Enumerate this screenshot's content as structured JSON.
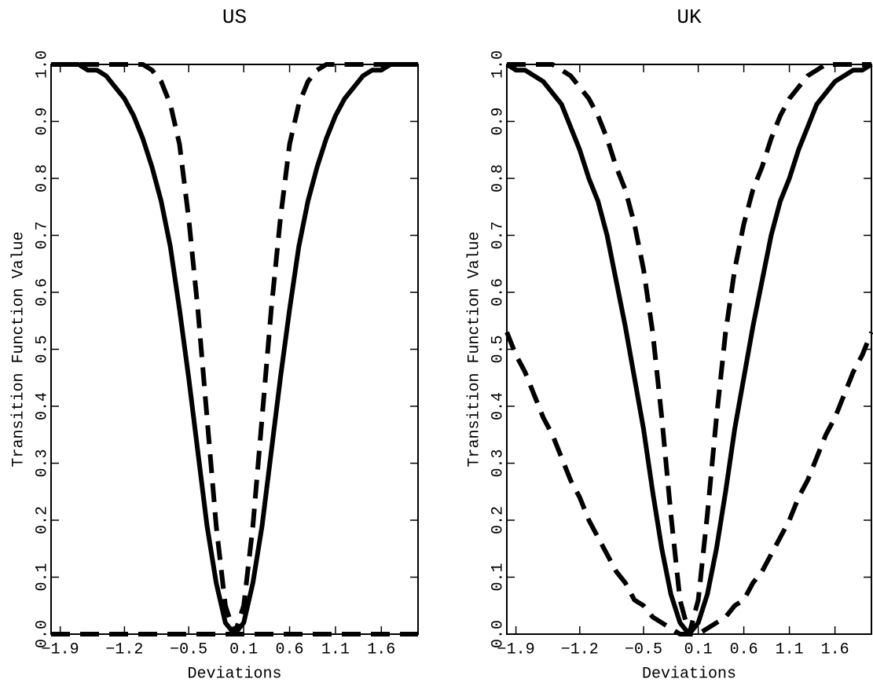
{
  "chart_data": [
    {
      "type": "line",
      "title": "US",
      "x_label": "Deviations",
      "y_label": "Transition Function Value",
      "x": [
        -2.0,
        -1.9,
        -1.8,
        -1.7,
        -1.6,
        -1.5,
        -1.4,
        -1.3,
        -1.2,
        -1.1,
        -1.0,
        -0.9,
        -0.8,
        -0.7,
        -0.6,
        -0.5,
        -0.4,
        -0.3,
        -0.2,
        -0.1,
        0,
        0.1,
        0.2,
        0.3,
        0.4,
        0.5,
        0.6,
        0.7,
        0.8,
        0.9,
        1.0,
        1.1,
        1.2,
        1.3,
        1.4,
        1.5,
        1.6,
        1.7,
        1.8,
        1.9,
        2.0
      ],
      "xlim": [
        -2,
        2
      ],
      "ylim": [
        0,
        1
      ],
      "xticks": [
        {
          "value": -1.9,
          "label": "−1.9"
        },
        {
          "value": -1.2,
          "label": "−1.2"
        },
        {
          "value": -0.5,
          "label": "−0.5"
        },
        0.1,
        0.6,
        1.1,
        1.6
      ],
      "yticks": [
        {
          "value": 0,
          "label": "0.0"
        },
        0.1,
        0.2,
        0.3,
        0.4,
        0.5,
        0.6,
        0.7,
        0.8,
        0.9,
        {
          "value": 1,
          "label": "1.0"
        }
      ],
      "series": [
        {
          "color": "#000000",
          "dashed": false,
          "values": [
            1,
            1,
            1,
            1,
            0.99,
            0.99,
            0.98,
            0.96,
            0.94,
            0.91,
            0.87,
            0.82,
            0.76,
            0.68,
            0.57,
            0.45,
            0.32,
            0.19,
            0.09,
            0.02,
            0,
            0.02,
            0.09,
            0.19,
            0.32,
            0.45,
            0.57,
            0.68,
            0.76,
            0.82,
            0.87,
            0.91,
            0.94,
            0.96,
            0.98,
            0.99,
            0.99,
            1,
            1,
            1,
            1
          ]
        },
        {
          "color": "#000000",
          "dashed": true,
          "values": [
            1,
            1,
            1,
            1,
            1,
            1,
            1,
            1,
            1,
            1,
            1,
            0.99,
            0.97,
            0.93,
            0.86,
            0.73,
            0.57,
            0.38,
            0.19,
            0.05,
            0,
            0.05,
            0.19,
            0.38,
            0.57,
            0.73,
            0.86,
            0.93,
            0.97,
            0.99,
            1,
            1,
            1,
            1,
            1,
            1,
            1,
            1,
            1,
            1,
            1
          ]
        },
        {
          "color": "#000000",
          "dashed": true,
          "values": [
            0,
            0,
            0,
            0,
            0,
            0,
            0,
            0,
            0,
            0,
            0,
            0,
            0,
            0,
            0,
            0,
            0,
            0,
            0,
            0,
            0,
            0,
            0,
            0,
            0,
            0,
            0,
            0,
            0,
            0,
            0,
            0,
            0,
            0,
            0,
            0,
            0,
            0,
            0,
            0,
            0
          ]
        }
      ]
    },
    {
      "type": "line",
      "title": "UK",
      "x_label": "Deviations",
      "y_label": "Transition Function Value",
      "x": [
        -2.0,
        -1.9,
        -1.8,
        -1.7,
        -1.6,
        -1.5,
        -1.4,
        -1.3,
        -1.2,
        -1.1,
        -1.0,
        -0.9,
        -0.8,
        -0.7,
        -0.6,
        -0.5,
        -0.4,
        -0.3,
        -0.2,
        -0.1,
        0,
        0.1,
        0.2,
        0.3,
        0.4,
        0.5,
        0.6,
        0.7,
        0.8,
        0.9,
        1.0,
        1.1,
        1.2,
        1.3,
        1.4,
        1.5,
        1.6,
        1.7,
        1.8,
        1.9,
        2.0
      ],
      "xlim": [
        -2,
        2
      ],
      "ylim": [
        0,
        1
      ],
      "xticks": [
        {
          "value": -1.9,
          "label": "−1.9"
        },
        {
          "value": -1.2,
          "label": "−1.2"
        },
        {
          "value": -0.5,
          "label": "−0.5"
        },
        0.1,
        0.6,
        1.1,
        1.6
      ],
      "yticks": [
        {
          "value": 0,
          "label": "0.0"
        },
        0.1,
        0.2,
        0.3,
        0.4,
        0.5,
        0.6,
        0.7,
        0.8,
        0.9,
        {
          "value": 1,
          "label": "1.0"
        }
      ],
      "series": [
        {
          "color": "#000000",
          "dashed": false,
          "values": [
            1,
            0.99,
            0.99,
            0.98,
            0.97,
            0.95,
            0.93,
            0.89,
            0.85,
            0.8,
            0.76,
            0.7,
            0.62,
            0.54,
            0.45,
            0.36,
            0.25,
            0.15,
            0.07,
            0.02,
            0,
            0.02,
            0.07,
            0.15,
            0.25,
            0.36,
            0.45,
            0.54,
            0.62,
            0.7,
            0.76,
            0.8,
            0.85,
            0.89,
            0.93,
            0.95,
            0.97,
            0.98,
            0.99,
            0.99,
            1
          ]
        },
        {
          "color": "#000000",
          "dashed": true,
          "values": [
            1,
            1,
            1,
            1,
            1,
            1,
            0.99,
            0.98,
            0.96,
            0.94,
            0.91,
            0.87,
            0.82,
            0.78,
            0.72,
            0.64,
            0.53,
            0.38,
            0.21,
            0.06,
            0,
            0.06,
            0.21,
            0.38,
            0.53,
            0.64,
            0.72,
            0.78,
            0.82,
            0.87,
            0.91,
            0.94,
            0.96,
            0.98,
            0.99,
            1,
            1,
            1,
            1,
            1,
            1
          ]
        },
        {
          "color": "#000000",
          "dashed": true,
          "values": [
            0.53,
            0.49,
            0.46,
            0.42,
            0.38,
            0.35,
            0.31,
            0.27,
            0.24,
            0.2,
            0.17,
            0.14,
            0.11,
            0.09,
            0.06,
            0.05,
            0.03,
            0.02,
            0.01,
            0,
            0,
            0,
            0.01,
            0.02,
            0.03,
            0.05,
            0.06,
            0.09,
            0.11,
            0.14,
            0.17,
            0.2,
            0.24,
            0.27,
            0.31,
            0.35,
            0.38,
            0.42,
            0.46,
            0.49,
            0.53
          ]
        }
      ]
    }
  ]
}
